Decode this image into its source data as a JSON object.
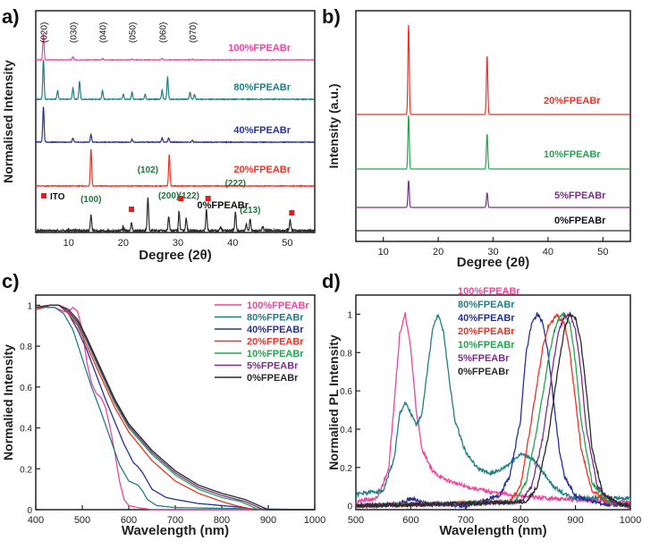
{
  "figure": {
    "panels": [
      {
        "id": "a",
        "label": "a)"
      },
      {
        "id": "b",
        "label": "b)"
      },
      {
        "id": "c",
        "label": "c)"
      },
      {
        "id": "d",
        "label": "d)"
      }
    ]
  },
  "colors": {
    "p100": "#f0439b",
    "p80": "#1f7f84",
    "p40": "#27309a",
    "p20": "#ee3124",
    "p10": "#21a650",
    "p5": "#7e2b8f",
    "p0": "#2a2a2a",
    "ito": "#e02020",
    "peakLabel": "#1a7a3c"
  },
  "chart_data": [
    {
      "panel": "a",
      "type": "line",
      "title": "",
      "xlabel": "Degree (2θ)",
      "ylabel": "Normalised Intensity",
      "xlim": [
        4,
        55
      ],
      "xticks": [
        10,
        20,
        30,
        40,
        50
      ],
      "yticks_shown": false,
      "series": [
        {
          "name": "100%FPEABr",
          "color": "p100",
          "peaks": [
            [
              5.4,
              1.0
            ],
            [
              10.8,
              0.12
            ],
            [
              16.2,
              0.05
            ],
            [
              21.6,
              0.04
            ],
            [
              27.1,
              0.06
            ],
            [
              32.6,
              0.03
            ]
          ]
        },
        {
          "name": "80%FPEABr",
          "color": "p80",
          "peaks": [
            [
              5.4,
              1.0
            ],
            [
              8.0,
              0.22
            ],
            [
              10.8,
              0.28
            ],
            [
              12.0,
              0.45
            ],
            [
              16.2,
              0.22
            ],
            [
              20.0,
              0.12
            ],
            [
              21.6,
              0.18
            ],
            [
              24.0,
              0.12
            ],
            [
              27.1,
              0.22
            ],
            [
              28.1,
              0.55
            ],
            [
              32.2,
              0.18
            ],
            [
              33.0,
              0.12
            ]
          ]
        },
        {
          "name": "40%FPEABr",
          "color": "p40",
          "peaks": [
            [
              5.4,
              1.0
            ],
            [
              10.8,
              0.12
            ],
            [
              14.1,
              0.22
            ],
            [
              21.6,
              0.08
            ],
            [
              27.1,
              0.12
            ],
            [
              28.3,
              0.12
            ],
            [
              32.6,
              0.05
            ]
          ]
        },
        {
          "name": "20%FPEABr",
          "color": "p20",
          "peaks": [
            [
              14.1,
              1.0
            ],
            [
              28.4,
              0.85
            ]
          ]
        },
        {
          "name": "0%FPEABr",
          "color": "p0",
          "peaks": [
            [
              14.1,
              0.45
            ],
            [
              20.0,
              0.12
            ],
            [
              21.5,
              0.22
            ],
            [
              24.5,
              0.95
            ],
            [
              28.3,
              0.4
            ],
            [
              30.2,
              0.55
            ],
            [
              31.5,
              0.35
            ],
            [
              35.2,
              0.6
            ],
            [
              37.8,
              0.1
            ],
            [
              40.5,
              0.55
            ],
            [
              42.5,
              0.2
            ],
            [
              43.2,
              0.35
            ],
            [
              45.5,
              0.12
            ],
            [
              50.5,
              0.3
            ]
          ]
        }
      ],
      "plane_labels": [
        "(020)",
        "(030)",
        "(040)",
        "(050)",
        "(060)",
        "(070)"
      ],
      "plane_positions": [
        5.4,
        10.8,
        16.2,
        21.6,
        27.1,
        32.6
      ],
      "peak_labels": [
        {
          "text": "(100)",
          "x": 14.1
        },
        {
          "text": "(102)",
          "x": 24.5
        },
        {
          "text": "(200)",
          "x": 28.3
        },
        {
          "text": "(122)",
          "x": 32.0
        },
        {
          "text": "(222)",
          "x": 40.5
        },
        {
          "text": "(213)",
          "x": 43.2
        }
      ],
      "ito_positions": [
        21.5,
        30.5,
        35.5,
        50.8
      ],
      "legend": "ITO"
    },
    {
      "panel": "b",
      "type": "line",
      "title": "",
      "xlabel": "Degree (2θ)",
      "ylabel": "Intensity (a.u.)",
      "xlim": [
        5,
        55
      ],
      "xticks": [
        10,
        20,
        30,
        40,
        50
      ],
      "yticks_shown": false,
      "series": [
        {
          "name": "20%FPEABr",
          "color": "p20",
          "peaks": [
            [
              14.6,
              1.0
            ],
            [
              28.9,
              0.65
            ]
          ]
        },
        {
          "name": "10%FPEABr",
          "color": "p10",
          "peaks": [
            [
              14.6,
              1.0
            ],
            [
              28.9,
              0.65
            ]
          ]
        },
        {
          "name": "5%FPEABr",
          "color": "p5",
          "peaks": [
            [
              14.6,
              1.0
            ],
            [
              28.9,
              0.55
            ]
          ]
        },
        {
          "name": "0%FPEABr",
          "color": "p0",
          "peaks": []
        }
      ]
    },
    {
      "panel": "c",
      "type": "line",
      "title": "",
      "xlabel": "Wavelength (nm)",
      "ylabel": "Normalied Intensity",
      "xlim": [
        400,
        1000
      ],
      "ylim": [
        0.0,
        1.05
      ],
      "xticks": [
        400,
        500,
        600,
        700,
        800,
        900,
        1000
      ],
      "yticks": [
        0.0,
        0.2,
        0.4,
        0.6,
        0.8,
        1.0
      ],
      "legend_position": "top-right",
      "series": [
        {
          "name": "100%FPEABr",
          "color": "p100",
          "x": [
            400,
            420,
            440,
            460,
            470,
            480,
            490,
            500,
            510,
            520,
            530,
            540,
            550,
            560,
            570,
            580,
            590,
            600,
            620,
            650,
            700,
            1000
          ],
          "y": [
            0.98,
            0.99,
            0.99,
            0.97,
            0.97,
            0.99,
            0.97,
            0.88,
            0.72,
            0.62,
            0.57,
            0.55,
            0.5,
            0.4,
            0.28,
            0.14,
            0.05,
            0.02,
            0.01,
            0.0,
            0.0,
            0.0
          ]
        },
        {
          "name": "80%FPEABr",
          "color": "p80",
          "x": [
            400,
            420,
            440,
            460,
            480,
            500,
            520,
            540,
            560,
            580,
            600,
            610,
            620,
            630,
            640,
            660,
            700,
            1000
          ],
          "y": [
            0.98,
            0.99,
            0.99,
            0.96,
            0.88,
            0.74,
            0.6,
            0.48,
            0.35,
            0.22,
            0.14,
            0.13,
            0.12,
            0.09,
            0.05,
            0.02,
            0.01,
            0.0
          ]
        },
        {
          "name": "40%FPEABr",
          "color": "p40",
          "x": [
            400,
            430,
            450,
            470,
            490,
            510,
            530,
            550,
            570,
            590,
            610,
            620,
            630,
            650,
            680,
            700,
            750,
            800,
            850,
            870,
            1000
          ],
          "y": [
            0.98,
            1.0,
            1.0,
            0.96,
            0.88,
            0.78,
            0.66,
            0.54,
            0.43,
            0.32,
            0.23,
            0.21,
            0.18,
            0.1,
            0.06,
            0.05,
            0.03,
            0.02,
            0.01,
            0.0,
            0.0
          ]
        },
        {
          "name": "20%FPEABr",
          "color": "p20",
          "x": [
            400,
            430,
            450,
            470,
            490,
            510,
            530,
            550,
            570,
            600,
            650,
            700,
            750,
            800,
            830,
            850,
            870,
            1000
          ],
          "y": [
            0.98,
            1.0,
            1.0,
            0.96,
            0.9,
            0.8,
            0.7,
            0.6,
            0.5,
            0.38,
            0.24,
            0.14,
            0.08,
            0.04,
            0.02,
            0.01,
            0.0,
            0.0
          ]
        },
        {
          "name": "10%FPEABr",
          "color": "p10",
          "x": [
            400,
            430,
            450,
            470,
            490,
            510,
            530,
            550,
            570,
            600,
            650,
            700,
            750,
            800,
            840,
            860,
            880,
            1000
          ],
          "y": [
            0.99,
            1.0,
            1.0,
            0.97,
            0.91,
            0.82,
            0.72,
            0.62,
            0.52,
            0.4,
            0.27,
            0.17,
            0.1,
            0.06,
            0.04,
            0.02,
            0.0,
            0.0
          ]
        },
        {
          "name": "5%FPEABr",
          "color": "p5",
          "x": [
            400,
            430,
            450,
            470,
            490,
            510,
            530,
            550,
            570,
            600,
            650,
            700,
            750,
            800,
            850,
            870,
            890,
            1000
          ],
          "y": [
            0.99,
            1.0,
            1.0,
            0.97,
            0.92,
            0.83,
            0.73,
            0.63,
            0.53,
            0.41,
            0.28,
            0.18,
            0.11,
            0.07,
            0.04,
            0.02,
            0.0,
            0.0
          ]
        },
        {
          "name": "0%FPEABr",
          "color": "p0",
          "x": [
            400,
            430,
            450,
            470,
            490,
            510,
            530,
            550,
            570,
            600,
            650,
            700,
            750,
            800,
            850,
            870,
            900,
            1000
          ],
          "y": [
            0.99,
            1.0,
            1.0,
            0.98,
            0.93,
            0.84,
            0.74,
            0.64,
            0.54,
            0.42,
            0.29,
            0.19,
            0.12,
            0.08,
            0.05,
            0.03,
            0.0,
            0.0
          ]
        }
      ]
    },
    {
      "panel": "d",
      "type": "line",
      "title": "",
      "xlabel": "Wavelength (nm)",
      "ylabel": "Normalied PL Intensity",
      "xlim": [
        500,
        1000
      ],
      "ylim": [
        -0.02,
        1.1
      ],
      "xticks": [
        500,
        600,
        700,
        800,
        900,
        1000
      ],
      "yticks": [
        0.0,
        0.2,
        0.4,
        0.6,
        0.8,
        1.0
      ],
      "legend_position": "top-left",
      "series": [
        {
          "name": "100%FPEABr",
          "color": "p100",
          "x": [
            500,
            540,
            560,
            570,
            580,
            590,
            600,
            610,
            620,
            640,
            660,
            700,
            750,
            800,
            900,
            1000
          ],
          "y": [
            0.02,
            0.04,
            0.2,
            0.55,
            0.9,
            1.0,
            0.82,
            0.5,
            0.3,
            0.18,
            0.14,
            0.1,
            0.07,
            0.05,
            0.03,
            0.02
          ]
        },
        {
          "name": "80%FPEABr",
          "color": "p80",
          "x": [
            500,
            550,
            570,
            580,
            590,
            600,
            610,
            620,
            630,
            640,
            650,
            660,
            670,
            680,
            700,
            720,
            740,
            760,
            780,
            800,
            820,
            840,
            860,
            880,
            900,
            1000
          ],
          "y": [
            0.06,
            0.08,
            0.25,
            0.48,
            0.54,
            0.48,
            0.42,
            0.48,
            0.7,
            0.93,
            1.0,
            0.9,
            0.66,
            0.45,
            0.28,
            0.2,
            0.17,
            0.18,
            0.22,
            0.27,
            0.25,
            0.18,
            0.1,
            0.06,
            0.04,
            0.04
          ]
        },
        {
          "name": "40%FPEABr",
          "color": "p40",
          "x": [
            500,
            580,
            600,
            610,
            630,
            700,
            760,
            780,
            800,
            810,
            820,
            830,
            840,
            850,
            860,
            870,
            880,
            900,
            950,
            1000
          ],
          "y": [
            0.0,
            0.01,
            0.04,
            0.03,
            0.01,
            0.0,
            0.05,
            0.15,
            0.45,
            0.8,
            0.95,
            1.0,
            0.96,
            0.8,
            0.55,
            0.3,
            0.15,
            0.05,
            0.01,
            0.0
          ]
        },
        {
          "name": "20%FPEABr",
          "color": "p20",
          "x": [
            500,
            780,
            800,
            820,
            840,
            850,
            860,
            865,
            870,
            880,
            890,
            900,
            910,
            930,
            960,
            1000
          ],
          "y": [
            0.0,
            0.02,
            0.1,
            0.45,
            0.82,
            0.93,
            0.97,
            1.0,
            0.98,
            0.95,
            0.8,
            0.55,
            0.3,
            0.08,
            0.02,
            0.0
          ]
        },
        {
          "name": "10%FPEABr",
          "color": "p10",
          "x": [
            500,
            790,
            810,
            830,
            850,
            860,
            870,
            880,
            890,
            900,
            910,
            930,
            960,
            1000
          ],
          "y": [
            0.0,
            0.02,
            0.12,
            0.4,
            0.75,
            0.9,
            0.98,
            1.0,
            0.95,
            0.75,
            0.45,
            0.12,
            0.02,
            0.0
          ]
        },
        {
          "name": "5%FPEABr",
          "color": "p5",
          "x": [
            500,
            800,
            820,
            840,
            860,
            870,
            880,
            890,
            900,
            910,
            920,
            940,
            970,
            1000
          ],
          "y": [
            0.0,
            0.02,
            0.1,
            0.35,
            0.75,
            0.92,
            0.99,
            1.0,
            0.92,
            0.7,
            0.4,
            0.1,
            0.01,
            0.0
          ]
        },
        {
          "name": "0%FPEABr",
          "color": "p0",
          "x": [
            500,
            810,
            830,
            850,
            870,
            880,
            890,
            900,
            910,
            920,
            930,
            950,
            980,
            1000
          ],
          "y": [
            0.0,
            0.02,
            0.1,
            0.35,
            0.75,
            0.93,
            1.0,
            0.98,
            0.85,
            0.6,
            0.3,
            0.06,
            0.01,
            0.0
          ]
        }
      ]
    }
  ]
}
